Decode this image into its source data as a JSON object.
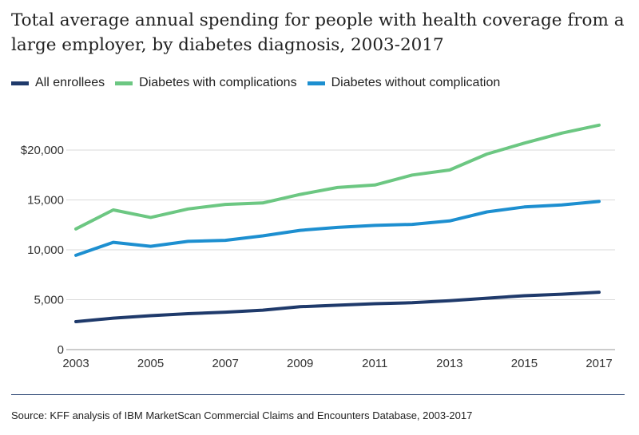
{
  "chart_data": {
    "type": "line",
    "title": "Total average annual spending for people with health coverage from a large employer, by diabetes diagnosis, 2003-2017",
    "x": [
      2003,
      2004,
      2005,
      2006,
      2007,
      2008,
      2009,
      2010,
      2011,
      2012,
      2013,
      2014,
      2015,
      2016,
      2017
    ],
    "x_tick_labels": [
      "2003",
      "2005",
      "2007",
      "2009",
      "2011",
      "2013",
      "2015",
      "2017"
    ],
    "y_tick_values": [
      0,
      5000,
      10000,
      15000,
      20000
    ],
    "y_tick_labels": [
      "0",
      "5,000",
      "10,000",
      "15,000",
      "$20,000"
    ],
    "ylim": [
      0,
      24000
    ],
    "xlabel": "",
    "ylabel": "",
    "grid": true,
    "legend_position": "top-left",
    "series": [
      {
        "name": "All enrollees",
        "color": "#1f3a6b",
        "values": [
          2800,
          3150,
          3400,
          3600,
          3750,
          3950,
          4300,
          4450,
          4600,
          4700,
          4900,
          5150,
          5400,
          5550,
          5750
        ]
      },
      {
        "name": "Diabetes with complications",
        "color": "#6cc782",
        "values": [
          12100,
          14000,
          13250,
          14100,
          14550,
          14700,
          15550,
          16250,
          16500,
          17500,
          18000,
          19600,
          20700,
          21700,
          22500
        ]
      },
      {
        "name": "Diabetes without complication",
        "color": "#1d8fd0",
        "values": [
          9450,
          10750,
          10350,
          10850,
          10950,
          11400,
          11950,
          12250,
          12450,
          12550,
          12900,
          13800,
          14300,
          14500,
          14850
        ]
      }
    ]
  },
  "source": "Source: KFF analysis of IBM MarketScan Commercial Claims and Encounters Database, 2003-2017"
}
